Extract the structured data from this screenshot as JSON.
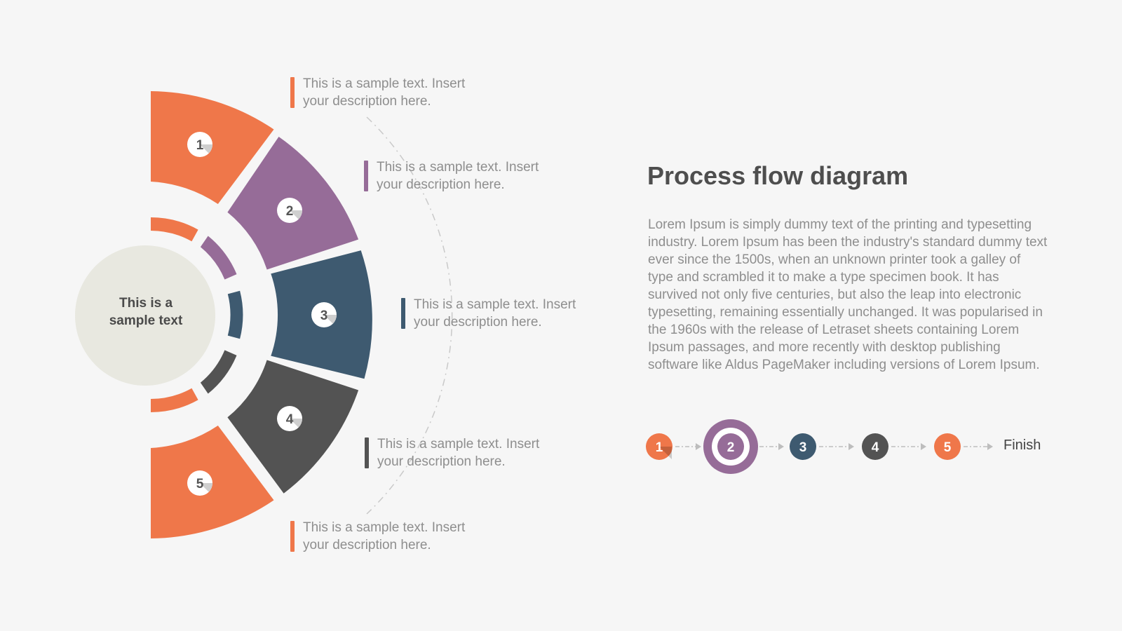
{
  "center": {
    "text_line1": "This is a",
    "text_line2": "sample text"
  },
  "steps": [
    {
      "number": "1",
      "color": "#ef774a",
      "description_line1": "This is a sample text. Insert",
      "description_line2": "your description here."
    },
    {
      "number": "2",
      "color": "#966c98",
      "description_line1": "This is a sample text. Insert",
      "description_line2": "your description here."
    },
    {
      "number": "3",
      "color": "#3e5a70",
      "description_line1": "This is a sample text. Insert",
      "description_line2": "your description here."
    },
    {
      "number": "4",
      "color": "#535353",
      "description_line1": "This is a sample text. Insert",
      "description_line2": "your description here."
    },
    {
      "number": "5",
      "color": "#ef774a",
      "description_line1": "This is a sample text. Insert",
      "description_line2": "your description here."
    }
  ],
  "title": "Process flow diagram",
  "body": "Lorem Ipsum is simply dummy text of the printing and typesetting industry. Lorem Ipsum has been the industry's standard dummy text ever since the 1500s, when an unknown printer took a galley of type and scrambled it to make a type specimen book. It has survived not only five centuries, but also the leap into electronic typesetting, remaining essentially unchanged. It was popularised in the 1960s with the release of Letraset sheets containing Lorem Ipsum passages, and more recently with desktop publishing software like Aldus PageMaker including versions of Lorem Ipsum.",
  "flow": {
    "active_step": "2",
    "finish_label": "Finish"
  },
  "colors": {
    "center_circle": "#e8e8e0",
    "background": "#f6f6f6"
  }
}
